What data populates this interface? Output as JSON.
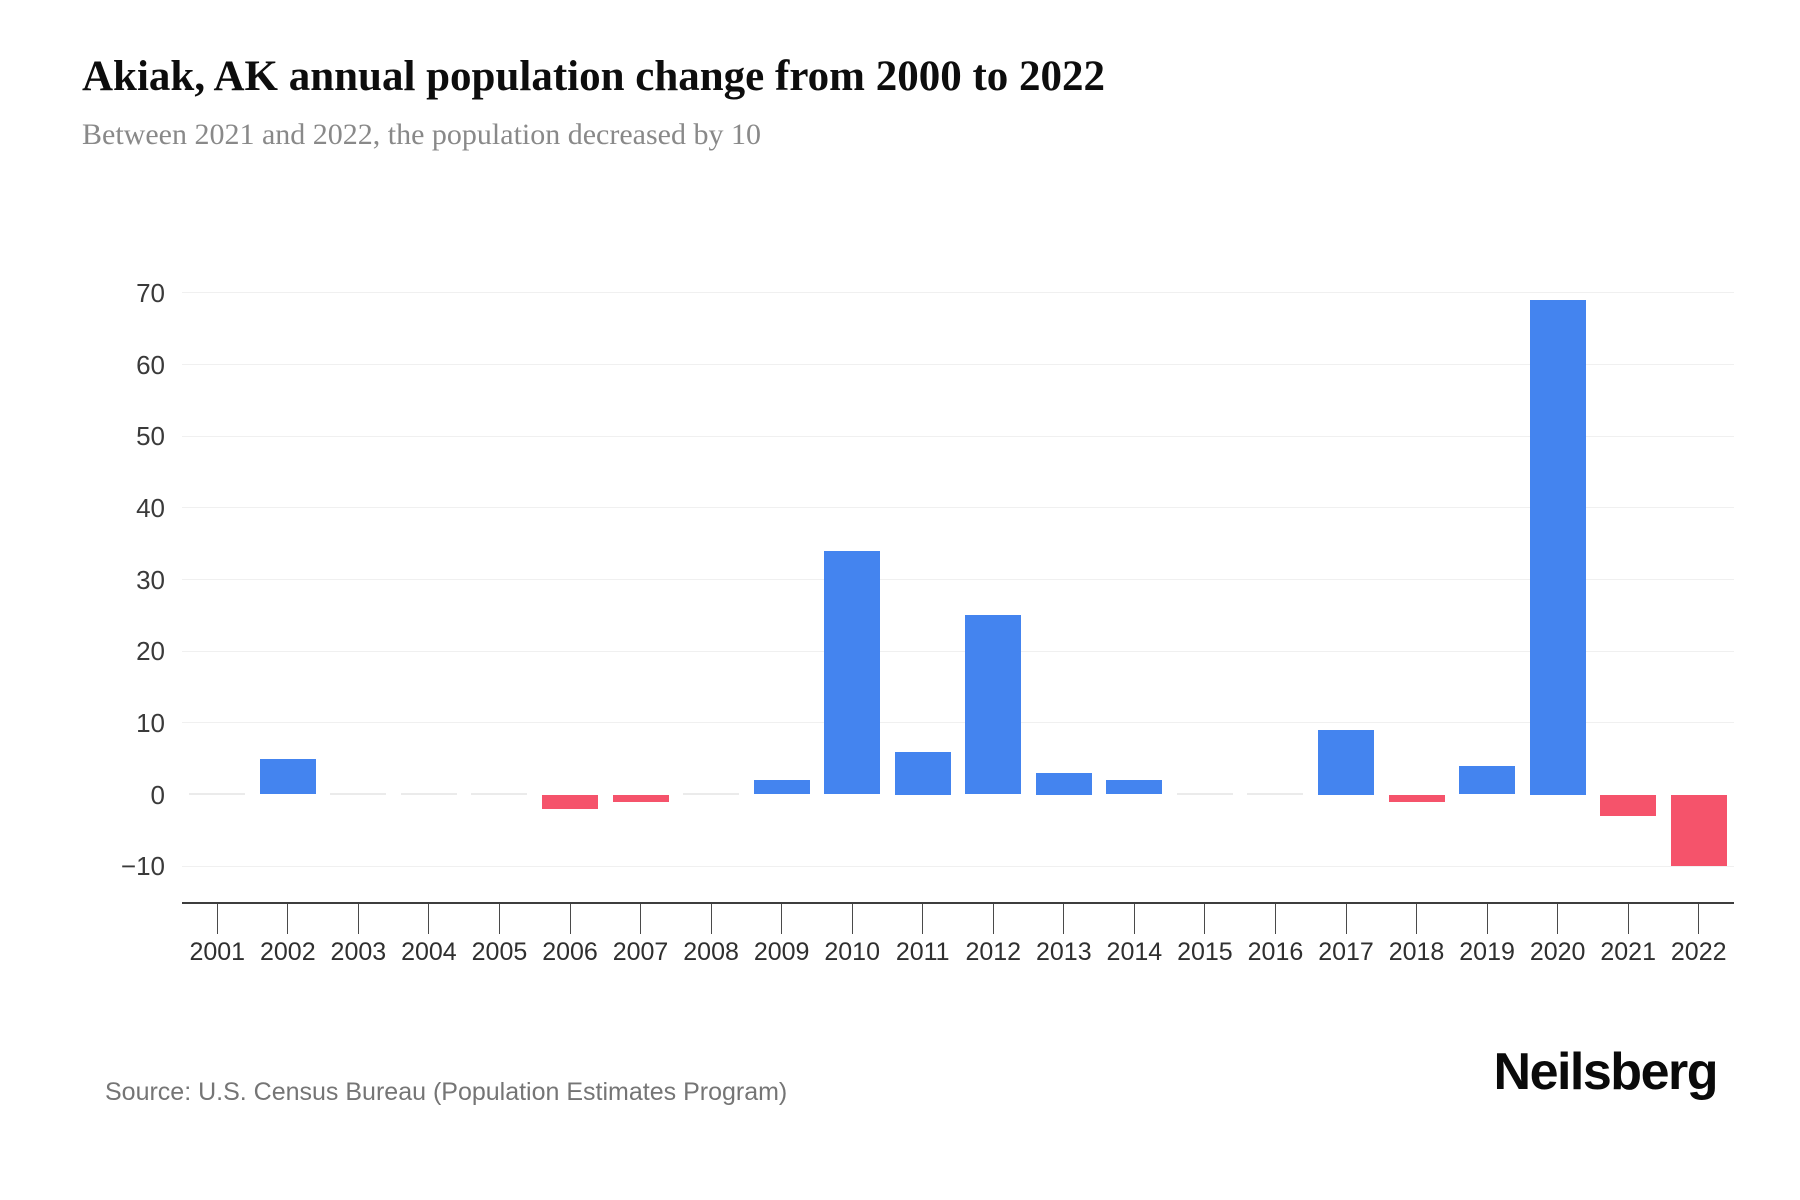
{
  "header": {
    "title": "Akiak, AK annual population change from 2000 to 2022",
    "subtitle": "Between 2021 and 2022, the population decreased by 10"
  },
  "footer": {
    "source": "Source: U.S. Census Bureau (Population Estimates Program)",
    "brand": "Neilsberg"
  },
  "chart_data": {
    "type": "bar",
    "title": "Akiak, AK annual population change from 2000 to 2022",
    "subtitle": "Between 2021 and 2022, the population decreased by 10",
    "categories": [
      "2001",
      "2002",
      "2003",
      "2004",
      "2005",
      "2006",
      "2007",
      "2008",
      "2009",
      "2010",
      "2011",
      "2012",
      "2013",
      "2014",
      "2015",
      "2016",
      "2017",
      "2018",
      "2019",
      "2020",
      "2021",
      "2022"
    ],
    "values": [
      0,
      5,
      0,
      0,
      0,
      -2,
      -1,
      0,
      2,
      34,
      6,
      25,
      3,
      2,
      0,
      0,
      9,
      -1,
      4,
      69,
      -3,
      -10
    ],
    "xlabel": "",
    "ylabel": "",
    "ylim": [
      -15,
      75
    ],
    "yticks": [
      70,
      60,
      50,
      40,
      30,
      20,
      10,
      0,
      -10
    ],
    "grid": true,
    "legend": false,
    "colors": {
      "positive": "#4484EF",
      "negative": "#F5536B",
      "zero_dash": "#ebebeb",
      "gridline": "#f0f0f0",
      "axis": "#3d3d3d"
    }
  }
}
